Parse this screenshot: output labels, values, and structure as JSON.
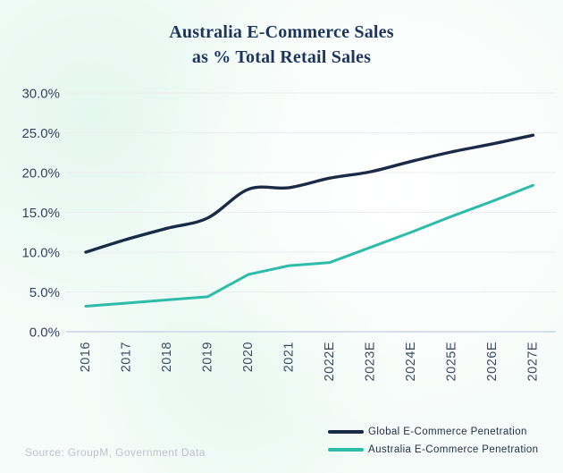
{
  "page": {
    "source_note": "Source: GroupM, Government Data"
  },
  "chart_data": {
    "type": "line",
    "title": "Australia E-Commerce Sales as % Total Retail Sales",
    "title_lines": [
      "Australia E-Commerce Sales",
      "as % Total Retail Sales"
    ],
    "xlabel": "",
    "ylabel": "",
    "ylim": [
      0,
      30
    ],
    "grid": "horizontal",
    "legend_position": "bottom-right",
    "categories": [
      "2016",
      "2017",
      "2018",
      "2019",
      "2020",
      "2021",
      "2022E",
      "2023E",
      "2024E",
      "2025E",
      "2026E",
      "2027E"
    ],
    "y_ticks": [
      {
        "label": "30.0%",
        "value": 30
      },
      {
        "label": "25.0%",
        "value": 25
      },
      {
        "label": "20.0%",
        "value": 20
      },
      {
        "label": "15.0%",
        "value": 15
      },
      {
        "label": "10.0%",
        "value": 10
      },
      {
        "label": "5.0%",
        "value": 5
      },
      {
        "label": "0.0%",
        "value": 0
      }
    ],
    "series": [
      {
        "name": "Global E-Commerce Penetration",
        "color": "#1b2a47",
        "smooth": true,
        "values": [
          10.0,
          11.6,
          13.0,
          14.3,
          17.9,
          18.1,
          19.3,
          20.1,
          21.4,
          22.6,
          23.6,
          24.7
        ]
      },
      {
        "name": "Australia E-Commerce Penetration",
        "color": "#2dbbaa",
        "smooth": false,
        "values": [
          3.2,
          3.6,
          4.0,
          4.4,
          7.2,
          8.3,
          8.7,
          10.6,
          12.5,
          14.5,
          16.4,
          18.4
        ]
      }
    ]
  }
}
